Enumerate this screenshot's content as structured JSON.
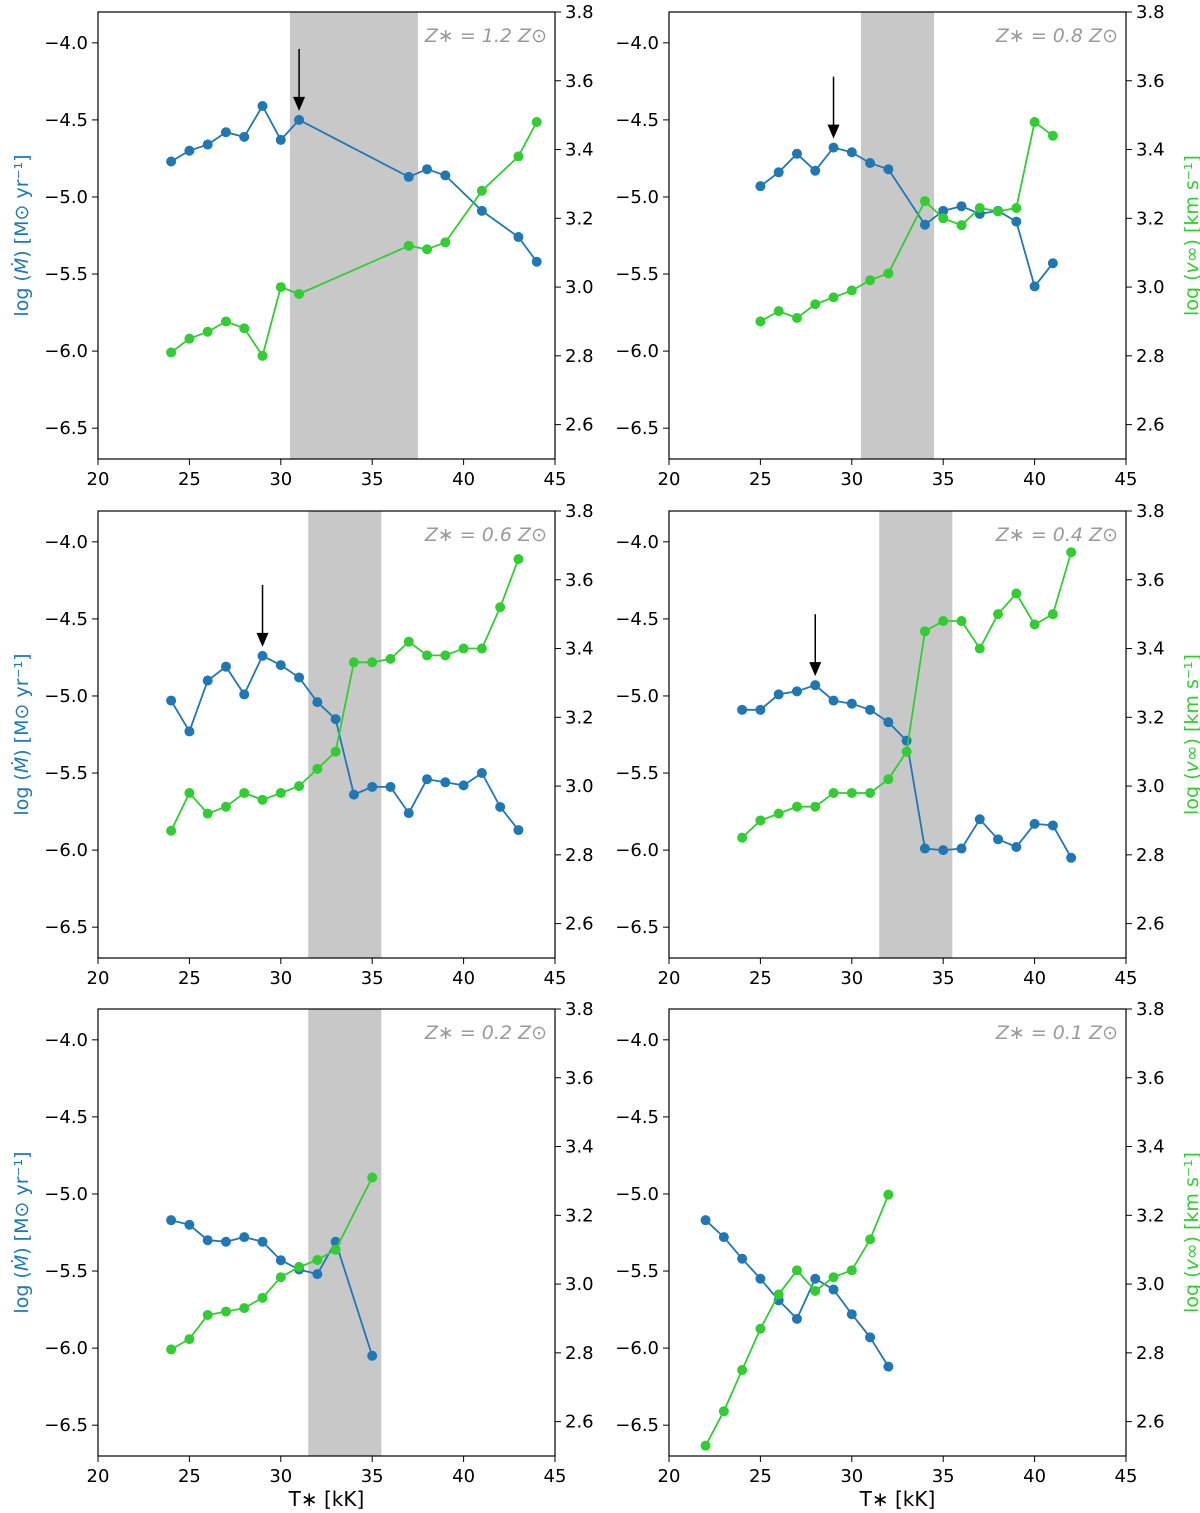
{
  "figure": {
    "left_ylabel_prefix": "log (",
    "left_ylabel_symbol": "Ṁ",
    "left_ylabel_suffix": ") [M⊙ yr⁻¹]",
    "right_ylabel_prefix": "log (",
    "right_ylabel_symbol": "v∞",
    "right_ylabel_suffix": ") [km s⁻¹]",
    "xlabel": "T∗ [kK]"
  },
  "chart_data": [
    {
      "type": "line",
      "annotation": "Z∗ = 1.2 Z⊙",
      "xlim": [
        20,
        45
      ],
      "ylim_left": [
        -6.7,
        -3.8
      ],
      "ylim_right": [
        2.5,
        3.8
      ],
      "xticks": [
        20,
        25,
        30,
        35,
        40,
        45
      ],
      "yticks_left": [
        -4.0,
        -4.5,
        -5.0,
        -5.5,
        -6.0,
        -6.5
      ],
      "yticks_right": [
        3.8,
        3.6,
        3.4,
        3.2,
        3.0,
        2.8,
        2.6
      ],
      "shade": [
        30.5,
        37.5
      ],
      "arrow_x": 31,
      "series": [
        {
          "name": "log Mdot",
          "axis": "left",
          "color": "#1f77b4",
          "x": [
            24,
            25,
            26,
            27,
            28,
            29,
            30,
            31,
            37,
            38,
            39,
            41,
            43,
            44
          ],
          "y": [
            -4.77,
            -4.7,
            -4.66,
            -4.58,
            -4.61,
            -4.41,
            -4.63,
            -4.5,
            -4.87,
            -4.82,
            -4.86,
            -5.09,
            -5.26,
            -5.42
          ]
        },
        {
          "name": "log v_inf",
          "axis": "right",
          "color": "#32cd32",
          "x": [
            24,
            25,
            26,
            27,
            28,
            29,
            30,
            31,
            37,
            38,
            39,
            41,
            43,
            44
          ],
          "y": [
            2.81,
            2.85,
            2.87,
            2.9,
            2.88,
            2.8,
            3.0,
            2.98,
            3.12,
            3.11,
            3.13,
            3.28,
            3.38,
            3.48
          ]
        }
      ]
    },
    {
      "type": "line",
      "annotation": "Z∗ = 0.8 Z⊙",
      "xlim": [
        20,
        45
      ],
      "ylim_left": [
        -6.7,
        -3.8
      ],
      "ylim_right": [
        2.5,
        3.8
      ],
      "xticks": [
        20,
        25,
        30,
        35,
        40,
        45
      ],
      "yticks_left": [
        -4.0,
        -4.5,
        -5.0,
        -5.5,
        -6.0,
        -6.5
      ],
      "yticks_right": [
        3.8,
        3.6,
        3.4,
        3.2,
        3.0,
        2.8,
        2.6
      ],
      "shade": [
        30.5,
        34.5
      ],
      "arrow_x": 29,
      "series": [
        {
          "name": "log Mdot",
          "axis": "left",
          "color": "#1f77b4",
          "x": [
            25,
            26,
            27,
            28,
            29,
            30,
            31,
            32,
            34,
            35,
            36,
            37,
            38,
            39,
            40,
            41
          ],
          "y": [
            -4.93,
            -4.84,
            -4.72,
            -4.83,
            -4.68,
            -4.71,
            -4.78,
            -4.82,
            -5.18,
            -5.09,
            -5.06,
            -5.11,
            -5.09,
            -5.16,
            -5.58,
            -5.43
          ]
        },
        {
          "name": "log v_inf",
          "axis": "right",
          "color": "#32cd32",
          "x": [
            25,
            26,
            27,
            28,
            29,
            30,
            31,
            32,
            34,
            35,
            36,
            37,
            38,
            39,
            40,
            41
          ],
          "y": [
            2.9,
            2.93,
            2.91,
            2.95,
            2.97,
            2.99,
            3.02,
            3.04,
            3.25,
            3.2,
            3.18,
            3.23,
            3.22,
            3.23,
            3.48,
            3.44
          ]
        }
      ]
    },
    {
      "type": "line",
      "annotation": "Z∗ = 0.6 Z⊙",
      "xlim": [
        20,
        45
      ],
      "ylim_left": [
        -6.7,
        -3.8
      ],
      "ylim_right": [
        2.5,
        3.8
      ],
      "xticks": [
        20,
        25,
        30,
        35,
        40,
        45
      ],
      "yticks_left": [
        -4.0,
        -4.5,
        -5.0,
        -5.5,
        -6.0,
        -6.5
      ],
      "yticks_right": [
        3.8,
        3.6,
        3.4,
        3.2,
        3.0,
        2.8,
        2.6
      ],
      "shade": [
        31.5,
        35.5
      ],
      "arrow_x": 29,
      "series": [
        {
          "name": "log Mdot",
          "axis": "left",
          "color": "#1f77b4",
          "x": [
            24,
            25,
            26,
            27,
            28,
            29,
            30,
            31,
            32,
            33,
            34,
            35,
            36,
            37,
            38,
            39,
            40,
            41,
            42,
            43
          ],
          "y": [
            -5.03,
            -5.23,
            -4.9,
            -4.81,
            -4.99,
            -4.74,
            -4.8,
            -4.88,
            -5.04,
            -5.15,
            -5.64,
            -5.59,
            -5.59,
            -5.76,
            -5.54,
            -5.56,
            -5.58,
            -5.5,
            -5.72,
            -5.87
          ]
        },
        {
          "name": "log v_inf",
          "axis": "right",
          "color": "#32cd32",
          "x": [
            24,
            25,
            26,
            27,
            28,
            29,
            30,
            31,
            32,
            33,
            34,
            35,
            36,
            37,
            38,
            39,
            40,
            41,
            42,
            43
          ],
          "y": [
            2.87,
            2.98,
            2.92,
            2.94,
            2.98,
            2.96,
            2.98,
            3.0,
            3.05,
            3.1,
            3.36,
            3.36,
            3.37,
            3.42,
            3.38,
            3.38,
            3.4,
            3.4,
            3.52,
            3.66
          ]
        }
      ]
    },
    {
      "type": "line",
      "annotation": "Z∗ = 0.4 Z⊙",
      "xlim": [
        20,
        45
      ],
      "ylim_left": [
        -6.7,
        -3.8
      ],
      "ylim_right": [
        2.5,
        3.8
      ],
      "xticks": [
        20,
        25,
        30,
        35,
        40,
        45
      ],
      "yticks_left": [
        -4.0,
        -4.5,
        -5.0,
        -5.5,
        -6.0,
        -6.5
      ],
      "yticks_right": [
        3.8,
        3.6,
        3.4,
        3.2,
        3.0,
        2.8,
        2.6
      ],
      "shade": [
        31.5,
        35.5
      ],
      "arrow_x": 28,
      "series": [
        {
          "name": "log Mdot",
          "axis": "left",
          "color": "#1f77b4",
          "x": [
            24,
            25,
            26,
            27,
            28,
            29,
            30,
            31,
            32,
            33,
            34,
            35,
            36,
            37,
            38,
            39,
            40,
            41,
            42
          ],
          "y": [
            -5.09,
            -5.09,
            -4.99,
            -4.97,
            -4.93,
            -5.03,
            -5.05,
            -5.09,
            -5.17,
            -5.29,
            -5.99,
            -6.0,
            -5.99,
            -5.8,
            -5.93,
            -5.98,
            -5.83,
            -5.84,
            -6.05
          ]
        },
        {
          "name": "log v_inf",
          "axis": "right",
          "color": "#32cd32",
          "x": [
            24,
            25,
            26,
            27,
            28,
            29,
            30,
            31,
            32,
            33,
            34,
            35,
            36,
            37,
            38,
            39,
            40,
            41,
            42
          ],
          "y": [
            2.85,
            2.9,
            2.92,
            2.94,
            2.94,
            2.98,
            2.98,
            2.98,
            3.02,
            3.1,
            3.45,
            3.48,
            3.48,
            3.4,
            3.5,
            3.56,
            3.47,
            3.5,
            3.68
          ]
        }
      ]
    },
    {
      "type": "line",
      "annotation": "Z∗ = 0.2 Z⊙",
      "xlim": [
        20,
        45
      ],
      "ylim_left": [
        -6.7,
        -3.8
      ],
      "ylim_right": [
        2.5,
        3.8
      ],
      "xticks": [
        20,
        25,
        30,
        35,
        40,
        45
      ],
      "yticks_left": [
        -4.0,
        -4.5,
        -5.0,
        -5.5,
        -6.0,
        -6.5
      ],
      "yticks_right": [
        3.8,
        3.6,
        3.4,
        3.2,
        3.0,
        2.8,
        2.6
      ],
      "shade": [
        31.5,
        35.5
      ],
      "series": [
        {
          "name": "log Mdot",
          "axis": "left",
          "color": "#1f77b4",
          "x": [
            24,
            25,
            26,
            27,
            28,
            29,
            30,
            31,
            32,
            33,
            35
          ],
          "y": [
            -5.17,
            -5.2,
            -5.3,
            -5.31,
            -5.28,
            -5.31,
            -5.43,
            -5.49,
            -5.52,
            -5.31,
            -6.05
          ]
        },
        {
          "name": "log v_inf",
          "axis": "right",
          "color": "#32cd32",
          "x": [
            24,
            25,
            26,
            27,
            28,
            29,
            30,
            31,
            32,
            33,
            35
          ],
          "y": [
            2.81,
            2.84,
            2.91,
            2.92,
            2.93,
            2.96,
            3.02,
            3.05,
            3.07,
            3.1,
            3.31
          ]
        }
      ]
    },
    {
      "type": "line",
      "annotation": "Z∗ = 0.1 Z⊙",
      "xlim": [
        20,
        45
      ],
      "ylim_left": [
        -6.7,
        -3.8
      ],
      "ylim_right": [
        2.5,
        3.8
      ],
      "xticks": [
        20,
        25,
        30,
        35,
        40,
        45
      ],
      "yticks_left": [
        -4.0,
        -4.5,
        -5.0,
        -5.5,
        -6.0,
        -6.5
      ],
      "yticks_right": [
        3.8,
        3.6,
        3.4,
        3.2,
        3.0,
        2.8,
        2.6
      ],
      "series": [
        {
          "name": "log Mdot",
          "axis": "left",
          "color": "#1f77b4",
          "x": [
            22,
            23,
            24,
            25,
            26,
            27,
            28,
            29,
            30,
            31,
            32
          ],
          "y": [
            -5.17,
            -5.28,
            -5.42,
            -5.55,
            -5.69,
            -5.81,
            -5.55,
            -5.62,
            -5.78,
            -5.93,
            -6.12
          ]
        },
        {
          "name": "log v_inf",
          "axis": "right",
          "color": "#32cd32",
          "x": [
            22,
            23,
            24,
            25,
            26,
            27,
            28,
            29,
            30,
            31,
            32
          ],
          "y": [
            2.53,
            2.63,
            2.75,
            2.87,
            2.97,
            3.04,
            2.98,
            3.02,
            3.04,
            3.13,
            3.26
          ]
        }
      ]
    }
  ]
}
